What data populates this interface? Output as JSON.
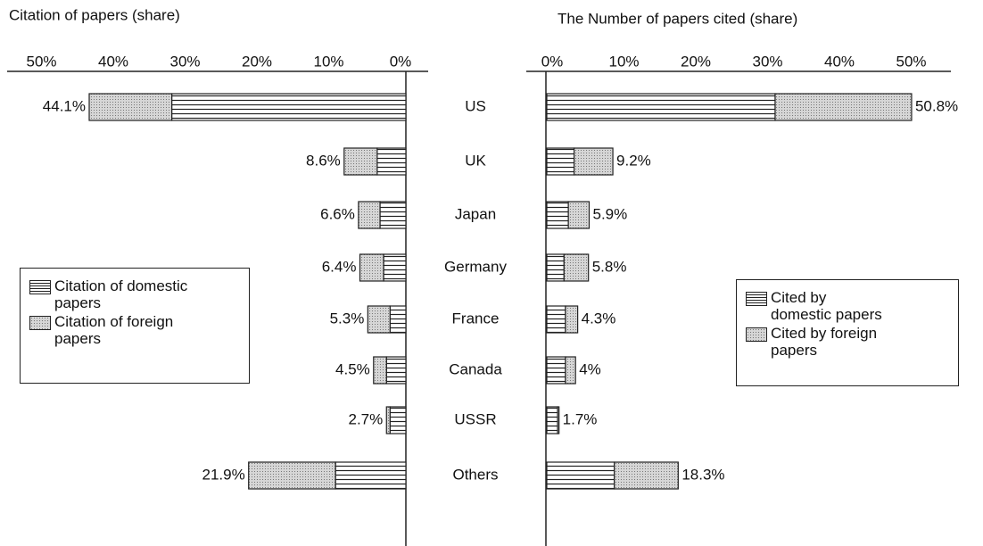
{
  "chart_data": [
    {
      "type": "butterfly-left",
      "title": "Citation of papers (share)",
      "categories": [
        "US",
        "UK",
        "Japan",
        "Germany",
        "France",
        "Canada",
        "USSR",
        "Others"
      ],
      "series": [
        {
          "name": "Citation of domestic papers",
          "pattern": "hlines",
          "color": "#222222",
          "values": [
            32.6,
            4.0,
            3.6,
            3.1,
            2.2,
            2.7,
            2.2,
            9.8
          ]
        },
        {
          "name": "Citation of foreign papers",
          "pattern": "dots",
          "color": "#c9c9c9",
          "values": [
            11.5,
            4.6,
            3.0,
            3.3,
            3.1,
            1.8,
            0.5,
            12.1
          ]
        }
      ],
      "totals": [
        44.1,
        8.6,
        6.6,
        6.4,
        5.3,
        4.5,
        2.7,
        21.9
      ],
      "total_labels": [
        "44.1%",
        "8.6%",
        "6.6%",
        "6.4%",
        "5.3%",
        "4.5%",
        "2.7%",
        "21.9%"
      ],
      "xlim": [
        0,
        50
      ],
      "xticks": [
        {
          "value": 0,
          "label": "0%"
        },
        {
          "value": 10,
          "label": "10%"
        },
        {
          "value": 20,
          "label": "20%"
        },
        {
          "value": 30,
          "label": "30%"
        },
        {
          "value": 40,
          "label": "40%"
        },
        {
          "value": 50,
          "label": "50%"
        }
      ],
      "legend": "left"
    },
    {
      "type": "butterfly-right",
      "title": "The Number of papers cited (share)",
      "series": [
        {
          "name": "Cited by domestic papers",
          "pattern": "hlines",
          "color": "#222222",
          "values": [
            31.8,
            3.8,
            3.0,
            2.4,
            2.6,
            2.6,
            1.5,
            9.4
          ]
        },
        {
          "name": "Cited by foreign papers",
          "pattern": "dots",
          "color": "#c9c9c9",
          "values": [
            19.0,
            5.4,
            2.9,
            3.4,
            1.7,
            1.4,
            0.2,
            8.9
          ]
        }
      ],
      "totals": [
        50.8,
        9.2,
        5.9,
        5.8,
        4.3,
        4,
        1.7,
        18.3
      ],
      "total_labels": [
        "50.8%",
        "9.2%",
        "5.9%",
        "5.8%",
        "4.3%",
        "4%",
        "1.7%",
        "18.3%"
      ],
      "xlim": [
        0,
        50
      ],
      "xticks": [
        {
          "value": 0,
          "label": "0%"
        },
        {
          "value": 10,
          "label": "10%"
        },
        {
          "value": 20,
          "label": "20%"
        },
        {
          "value": 30,
          "label": "30%"
        },
        {
          "value": 40,
          "label": "40%"
        },
        {
          "value": 50,
          "label": "50%"
        }
      ],
      "legend": "right"
    }
  ]
}
